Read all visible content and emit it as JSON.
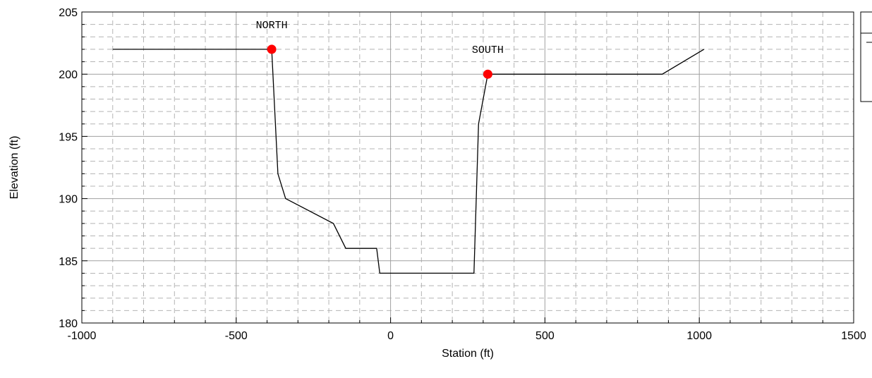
{
  "chart_data": {
    "type": "line",
    "xlabel": "Station (ft)",
    "ylabel": "Elevation (ft)",
    "xlim": [
      -1000,
      1500
    ],
    "ylim": [
      180,
      205
    ],
    "x_ticks": [
      -1000,
      -500,
      0,
      500,
      1000,
      1500
    ],
    "y_ticks": [
      180,
      185,
      190,
      195,
      200,
      205
    ],
    "x_minor_step": 100,
    "y_minor_step": 1,
    "grid": true,
    "legend": "top-right (clipped)",
    "series": [
      {
        "color": "#000000",
        "points": [
          [
            -900,
            202
          ],
          [
            -385,
            202
          ],
          [
            -365,
            192
          ],
          [
            -340,
            190
          ],
          [
            -185,
            188
          ],
          [
            -145,
            186
          ],
          [
            -45,
            186
          ],
          [
            -35,
            184
          ],
          [
            270,
            184
          ],
          [
            285,
            196
          ],
          [
            315,
            200
          ],
          [
            880,
            200
          ],
          [
            1015,
            202
          ]
        ]
      }
    ],
    "markers": [
      {
        "x": -385,
        "y": 202,
        "color": "#ff0000",
        "label": "NORTH"
      },
      {
        "x": 315,
        "y": 200,
        "color": "#ff0000",
        "label": "SOUTH"
      }
    ]
  }
}
